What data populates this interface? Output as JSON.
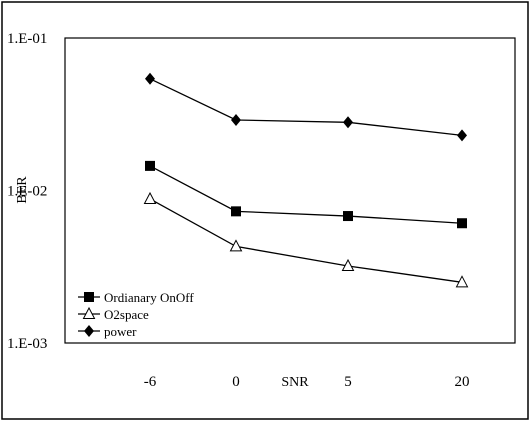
{
  "chart_data": {
    "type": "line",
    "title": "",
    "xlabel": "SNR",
    "ylabel": "BER",
    "categories": [
      "-6",
      "0",
      "5",
      "20"
    ],
    "y_scale": "log",
    "ylim": [
      0.001,
      0.1
    ],
    "y_ticks": [
      "1.E-01",
      "1.E-02",
      "1.E-03"
    ],
    "grid": false,
    "legend_position": "bottom-left",
    "series": [
      {
        "name": "Ordianary OnOff",
        "marker": "square",
        "values": [
          0.0145,
          0.0073,
          0.0068,
          0.0061
        ]
      },
      {
        "name": "O2space",
        "marker": "triangle-open",
        "values": [
          0.0088,
          0.0043,
          0.0032,
          0.0025
        ]
      },
      {
        "name": "power",
        "marker": "diamond",
        "values": [
          0.054,
          0.029,
          0.028,
          0.023
        ]
      }
    ]
  }
}
